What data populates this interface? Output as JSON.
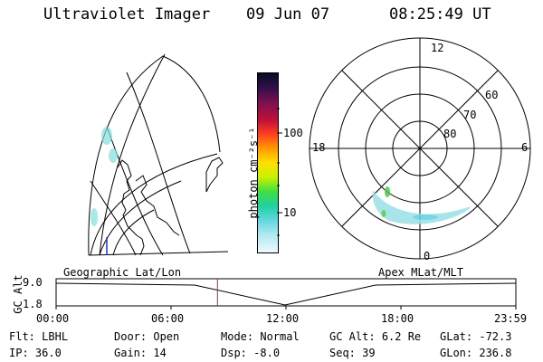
{
  "header": {
    "title": "Ultraviolet Imager",
    "date": "09 Jun 07",
    "time": "08:25:49 UT"
  },
  "colorbar": {
    "unit_label": "photon cm⁻²s⁻¹",
    "ticks": [
      "100",
      "10"
    ]
  },
  "polar": {
    "mlt_labels": {
      "top": "12",
      "left": "18",
      "right": "6",
      "bottom": "0"
    },
    "lat_labels": [
      "60",
      "70",
      "80"
    ]
  },
  "timeline": {
    "left_label": "Geographic Lat/Lon",
    "right_label": "Apex MLat/MLT",
    "y_axis_label": "GC Alt",
    "y_ticks": [
      "9.0",
      "1.8"
    ],
    "x_ticks": [
      "00:00",
      "06:00",
      "12:00",
      "18:00",
      "23:59"
    ],
    "current_time_fraction": 0.351
  },
  "footer": {
    "row1": [
      {
        "label": "Flt:",
        "value": "LBHL"
      },
      {
        "label": "Door:",
        "value": "Open"
      },
      {
        "label": "Mode:",
        "value": "Normal"
      },
      {
        "label": "GC Alt:",
        "value": "6.2 Re"
      },
      {
        "label": "GLat:",
        "value": "-72.3"
      }
    ],
    "row2": [
      {
        "label": "IP:",
        "value": "36.0"
      },
      {
        "label": "Gain:",
        "value": "14"
      },
      {
        "label": "Dsp:",
        "value": "-8.0"
      },
      {
        "label": "Seq:",
        "value": "39"
      },
      {
        "label": "GLon:",
        "value": "236.8"
      }
    ]
  }
}
